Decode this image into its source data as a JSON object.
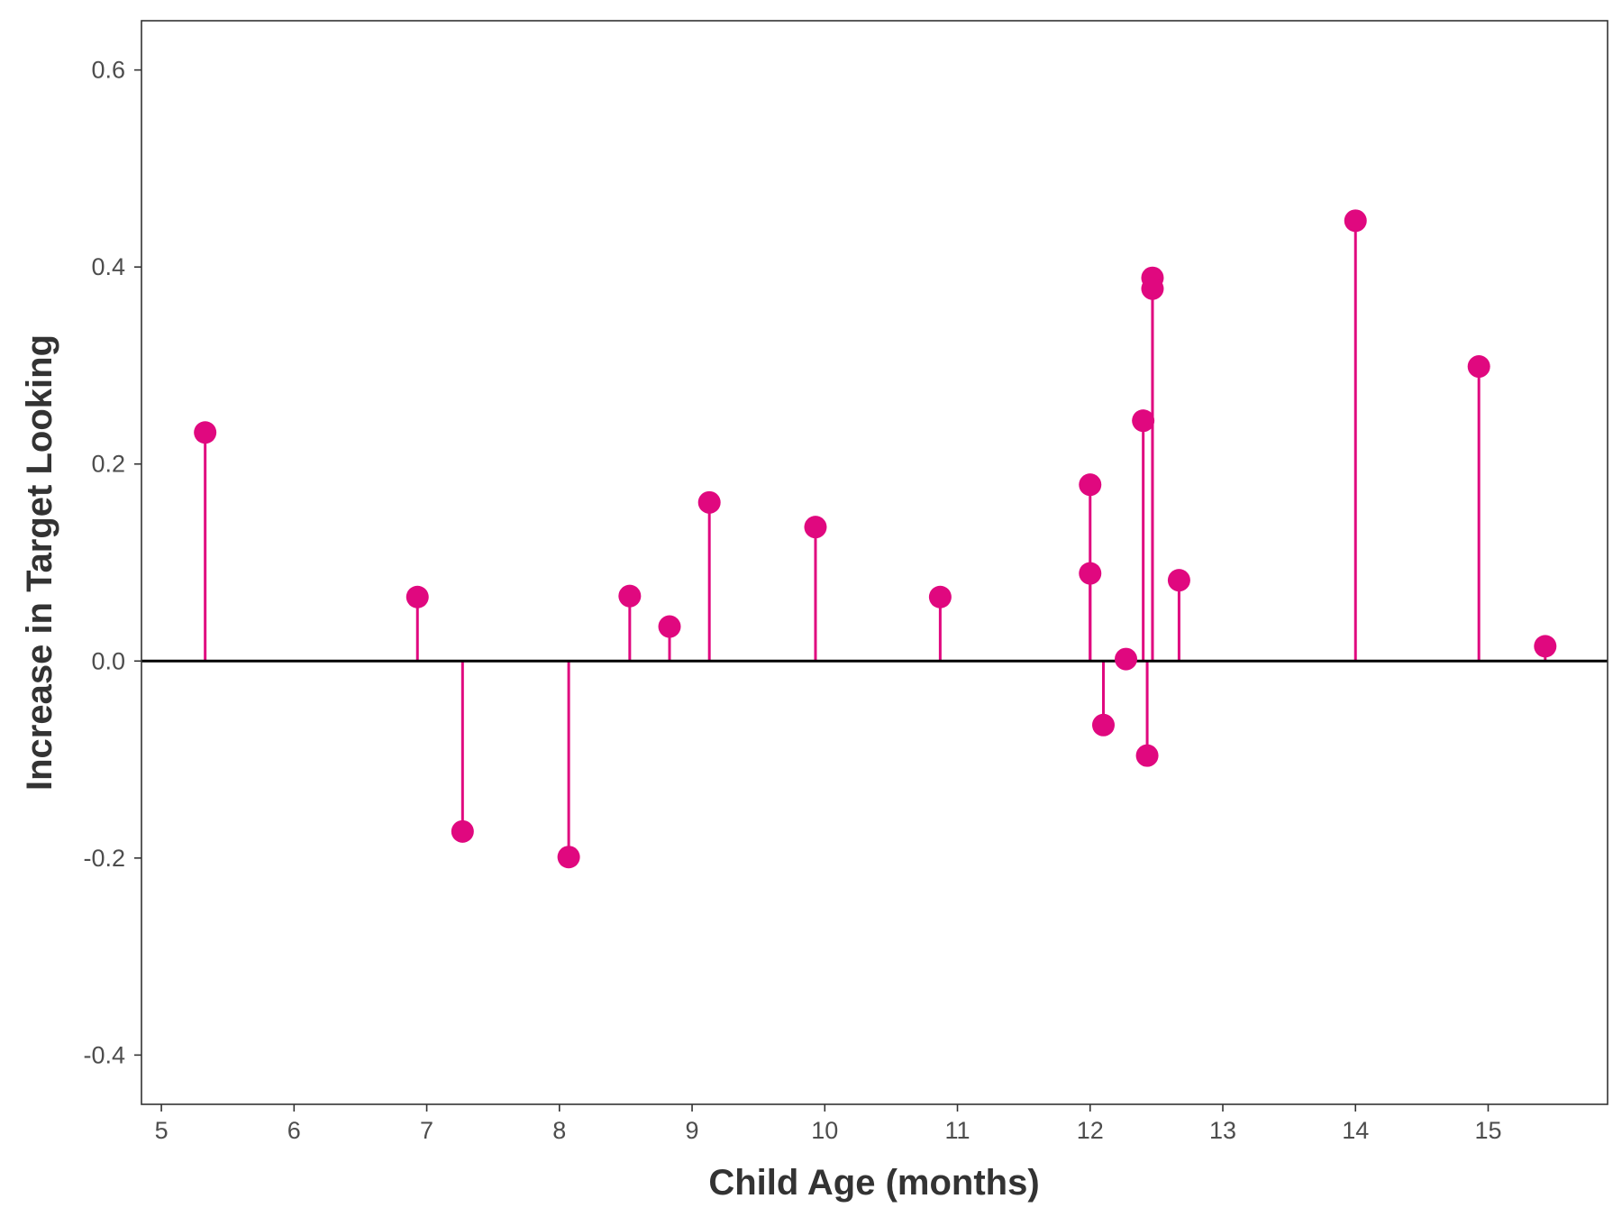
{
  "chart_data": {
    "type": "scatter",
    "title": "",
    "xlabel": "Child Age (months)",
    "ylabel": "Increase in Target Looking",
    "xlim": [
      4.85,
      15.9
    ],
    "ylim": [
      -0.45,
      0.65
    ],
    "xticks": [
      5,
      6,
      7,
      8,
      9,
      10,
      11,
      12,
      13,
      14,
      15
    ],
    "yticks": [
      -0.4,
      -0.2,
      0.0,
      0.2,
      0.4,
      0.6
    ],
    "ytick_labels": [
      "-0.4",
      "-0.2",
      "0.0",
      "0.2",
      "0.4",
      "0.6"
    ],
    "grid": false,
    "reference_line_y": 0,
    "color": "#e0087f",
    "points": [
      {
        "x": 5.33,
        "y": 0.232
      },
      {
        "x": 6.93,
        "y": 0.065
      },
      {
        "x": 7.27,
        "y": -0.173
      },
      {
        "x": 8.07,
        "y": -0.199
      },
      {
        "x": 8.53,
        "y": 0.066
      },
      {
        "x": 8.83,
        "y": 0.035
      },
      {
        "x": 9.13,
        "y": 0.161
      },
      {
        "x": 9.93,
        "y": 0.136
      },
      {
        "x": 10.87,
        "y": 0.065
      },
      {
        "x": 12.0,
        "y": 0.179
      },
      {
        "x": 12.0,
        "y": 0.089
      },
      {
        "x": 12.1,
        "y": -0.065
      },
      {
        "x": 12.27,
        "y": 0.002
      },
      {
        "x": 12.4,
        "y": 0.244
      },
      {
        "x": 12.43,
        "y": -0.096
      },
      {
        "x": 12.47,
        "y": 0.389
      },
      {
        "x": 12.47,
        "y": 0.378
      },
      {
        "x": 12.67,
        "y": 0.082
      },
      {
        "x": 14.0,
        "y": 0.447
      },
      {
        "x": 14.93,
        "y": 0.299
      },
      {
        "x": 15.43,
        "y": 0.015
      }
    ]
  }
}
